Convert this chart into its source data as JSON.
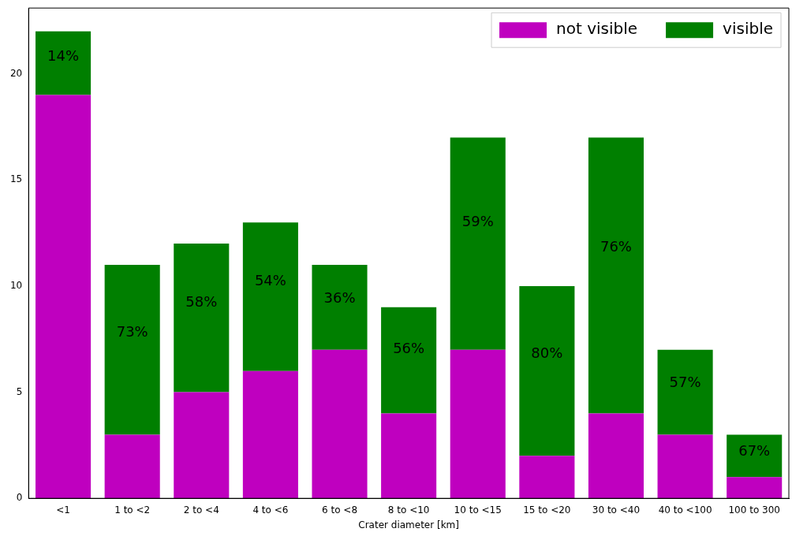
{
  "chart_data": {
    "type": "bar",
    "stacked": true,
    "xlabel": "Crater diameter [km]",
    "categories": [
      "<1",
      "1 to <2",
      "2 to <4",
      "4 to <6",
      "6 to <8",
      "8 to <10",
      "10 to <15",
      "15 to <20",
      "30 to <40",
      "40 to <100",
      "100 to 300"
    ],
    "series": [
      {
        "name": "not visible",
        "color": "#bf00bf",
        "values": [
          19,
          3,
          5,
          6,
          7,
          4,
          7,
          2,
          4,
          3,
          1
        ]
      },
      {
        "name": "visible",
        "color": "#007f00",
        "values": [
          3,
          8,
          7,
          7,
          4,
          5,
          10,
          8,
          13,
          4,
          2
        ]
      }
    ],
    "annotations": [
      "14%",
      "73%",
      "58%",
      "54%",
      "36%",
      "56%",
      "59%",
      "80%",
      "76%",
      "57%",
      "67%"
    ],
    "ylim": [
      0,
      23.1
    ],
    "yticks": [
      0,
      5,
      10,
      15,
      20
    ],
    "grid": false,
    "legend": "top right"
  }
}
